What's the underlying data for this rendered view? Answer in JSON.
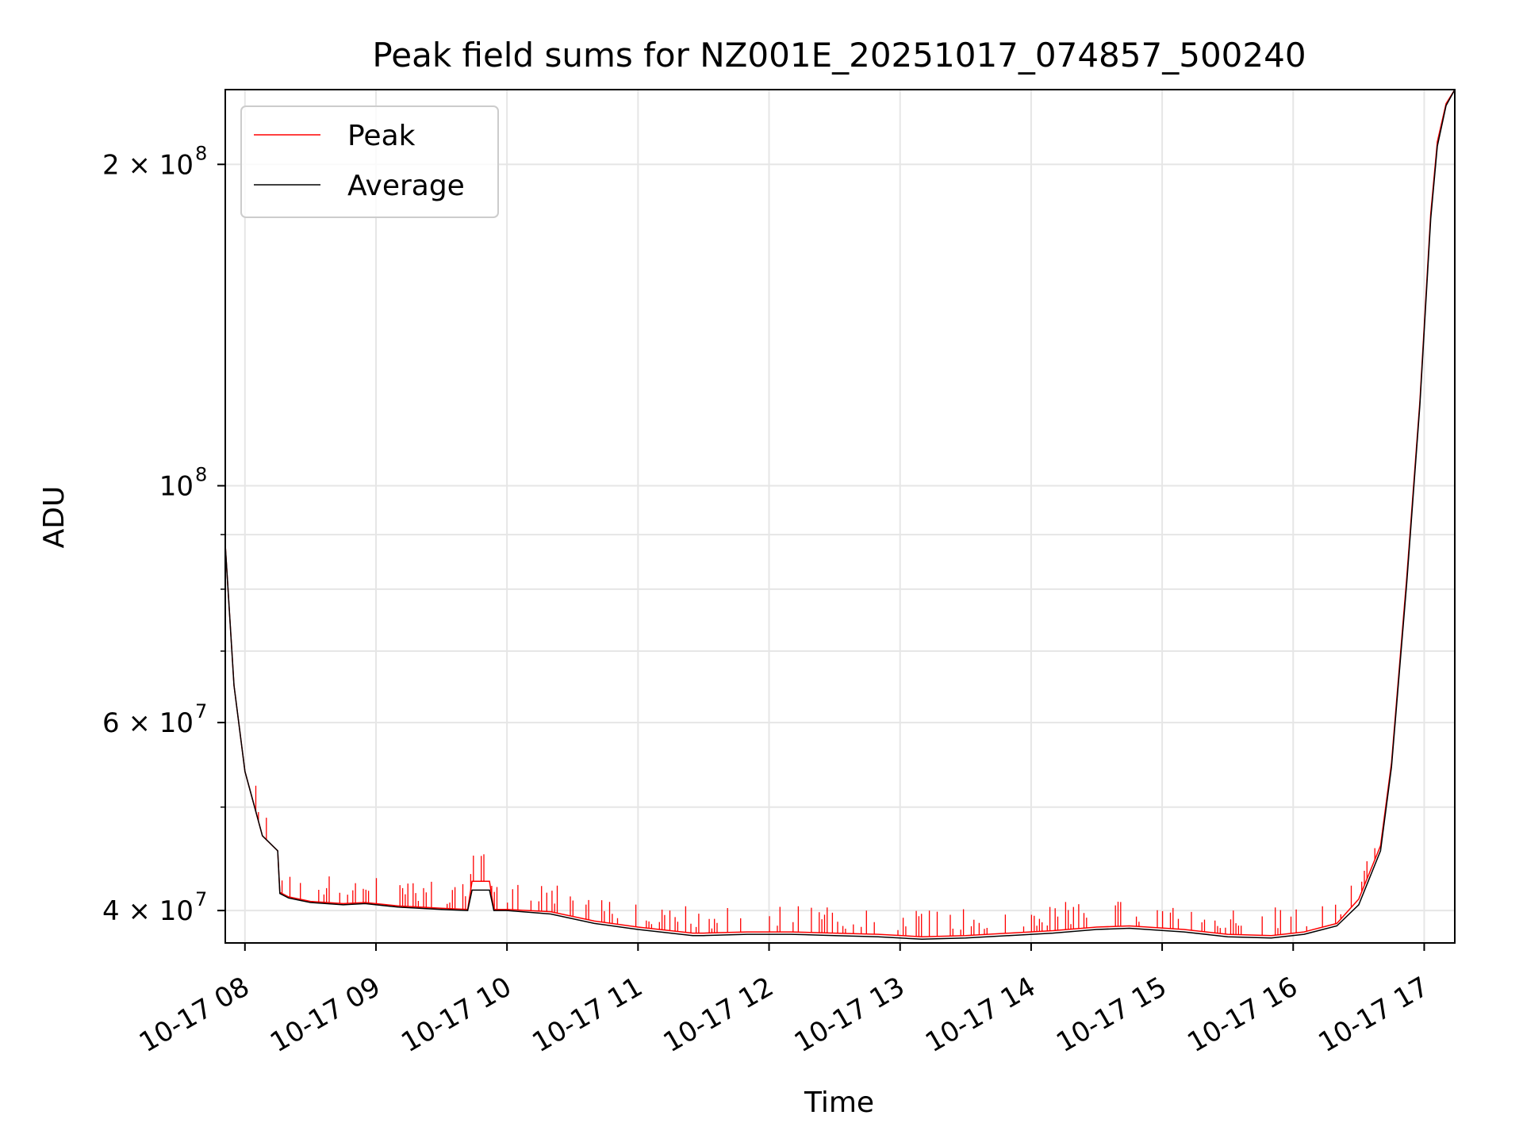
{
  "chart_data": {
    "type": "line",
    "title": "Peak field sums for NZ001E_20251017_074857_500240",
    "xlabel": "Time",
    "ylabel": "ADU",
    "yscale": "log",
    "xlim": [
      "2025-10-17 07:51",
      "2025-10-17 17:14"
    ],
    "ylim": [
      37300000,
      235000000
    ],
    "grid": true,
    "legend_position": "top-left",
    "x_ticks": [
      {
        "t": "2025-10-17 08:00",
        "label": "10-17 08"
      },
      {
        "t": "2025-10-17 09:00",
        "label": "10-17 09"
      },
      {
        "t": "2025-10-17 10:00",
        "label": "10-17 10"
      },
      {
        "t": "2025-10-17 11:00",
        "label": "10-17 11"
      },
      {
        "t": "2025-10-17 12:00",
        "label": "10-17 12"
      },
      {
        "t": "2025-10-17 13:00",
        "label": "10-17 13"
      },
      {
        "t": "2025-10-17 14:00",
        "label": "10-17 14"
      },
      {
        "t": "2025-10-17 15:00",
        "label": "10-17 15"
      },
      {
        "t": "2025-10-17 16:00",
        "label": "10-17 16"
      },
      {
        "t": "2025-10-17 17:00",
        "label": "10-17 17"
      }
    ],
    "y_major_ticks": [
      {
        "value": 40000000,
        "base": "4 × 10",
        "exp": "7"
      },
      {
        "value": 60000000,
        "base": "6 × 10",
        "exp": "7"
      },
      {
        "value": 100000000,
        "base": "10",
        "exp": "8"
      },
      {
        "value": 200000000,
        "base": "2 × 10",
        "exp": "8"
      }
    ],
    "y_minor_ticks": [
      50000000,
      70000000,
      80000000,
      90000000
    ],
    "series": [
      {
        "name": "Peak",
        "color": "#ff0000",
        "note_spikes": "frequent upward spikes above Average",
        "x": [
          "2025-10-17 07:51",
          "2025-10-17 07:55",
          "2025-10-17 08:00",
          "2025-10-17 08:08",
          "2025-10-17 08:15",
          "2025-10-17 08:16",
          "2025-10-17 08:20",
          "2025-10-17 08:30",
          "2025-10-17 08:45",
          "2025-10-17 08:55",
          "2025-10-17 09:10",
          "2025-10-17 09:30",
          "2025-10-17 09:42",
          "2025-10-17 09:44",
          "2025-10-17 09:52",
          "2025-10-17 09:54",
          "2025-10-17 10:00",
          "2025-10-17 10:20",
          "2025-10-17 10:40",
          "2025-10-17 11:00",
          "2025-10-17 11:25",
          "2025-10-17 11:30",
          "2025-10-17 11:50",
          "2025-10-17 12:10",
          "2025-10-17 12:30",
          "2025-10-17 12:50",
          "2025-10-17 13:10",
          "2025-10-17 13:30",
          "2025-10-17 13:50",
          "2025-10-17 14:10",
          "2025-10-17 14:30",
          "2025-10-17 14:45",
          "2025-10-17 15:10",
          "2025-10-17 15:30",
          "2025-10-17 15:50",
          "2025-10-17 16:05",
          "2025-10-17 16:20",
          "2025-10-17 16:30",
          "2025-10-17 16:40",
          "2025-10-17 16:45",
          "2025-10-17 16:52",
          "2025-10-17 16:58",
          "2025-10-17 17:03",
          "2025-10-17 17:06",
          "2025-10-17 17:10",
          "2025-10-17 17:14"
        ],
        "values": [
          88000000,
          65000000,
          54000000,
          47000000,
          45500000,
          41600000,
          41200000,
          40800000,
          40600000,
          40700000,
          40400000,
          40200000,
          40100000,
          42600000,
          42600000,
          40100000,
          40100000,
          39900000,
          39100000,
          38600000,
          38100000,
          38100000,
          38200000,
          38200000,
          38100000,
          38000000,
          37800000,
          37900000,
          38100000,
          38300000,
          38600000,
          38700000,
          38400000,
          38000000,
          37900000,
          38200000,
          38900000,
          41000000,
          46000000,
          55000000,
          82000000,
          120000000,
          180000000,
          210000000,
          228000000,
          235000000
        ]
      },
      {
        "name": "Average",
        "color": "#000000",
        "x": [
          "2025-10-17 07:51",
          "2025-10-17 07:55",
          "2025-10-17 08:00",
          "2025-10-17 08:08",
          "2025-10-17 08:15",
          "2025-10-17 08:16",
          "2025-10-17 08:20",
          "2025-10-17 08:30",
          "2025-10-17 08:45",
          "2025-10-17 08:55",
          "2025-10-17 09:10",
          "2025-10-17 09:30",
          "2025-10-17 09:42",
          "2025-10-17 09:44",
          "2025-10-17 09:52",
          "2025-10-17 09:54",
          "2025-10-17 10:00",
          "2025-10-17 10:20",
          "2025-10-17 10:40",
          "2025-10-17 11:00",
          "2025-10-17 11:25",
          "2025-10-17 11:30",
          "2025-10-17 11:50",
          "2025-10-17 12:10",
          "2025-10-17 12:30",
          "2025-10-17 12:50",
          "2025-10-17 13:10",
          "2025-10-17 13:30",
          "2025-10-17 13:50",
          "2025-10-17 14:10",
          "2025-10-17 14:30",
          "2025-10-17 14:45",
          "2025-10-17 15:10",
          "2025-10-17 15:30",
          "2025-10-17 15:50",
          "2025-10-17 16:05",
          "2025-10-17 16:20",
          "2025-10-17 16:30",
          "2025-10-17 16:40",
          "2025-10-17 16:45",
          "2025-10-17 16:52",
          "2025-10-17 16:58",
          "2025-10-17 17:03",
          "2025-10-17 17:06",
          "2025-10-17 17:10",
          "2025-10-17 17:14"
        ],
        "values": [
          88000000,
          65000000,
          54000000,
          47000000,
          45500000,
          41500000,
          41100000,
          40700000,
          40500000,
          40600000,
          40300000,
          40100000,
          40000000,
          41800000,
          41800000,
          40000000,
          40000000,
          39700000,
          38900000,
          38400000,
          37900000,
          37900000,
          38000000,
          38000000,
          37900000,
          37800000,
          37600000,
          37700000,
          37900000,
          38100000,
          38400000,
          38500000,
          38200000,
          37800000,
          37700000,
          38000000,
          38700000,
          40500000,
          45500000,
          54500000,
          81000000,
          119000000,
          178000000,
          208000000,
          227000000,
          235000000
        ]
      }
    ]
  }
}
